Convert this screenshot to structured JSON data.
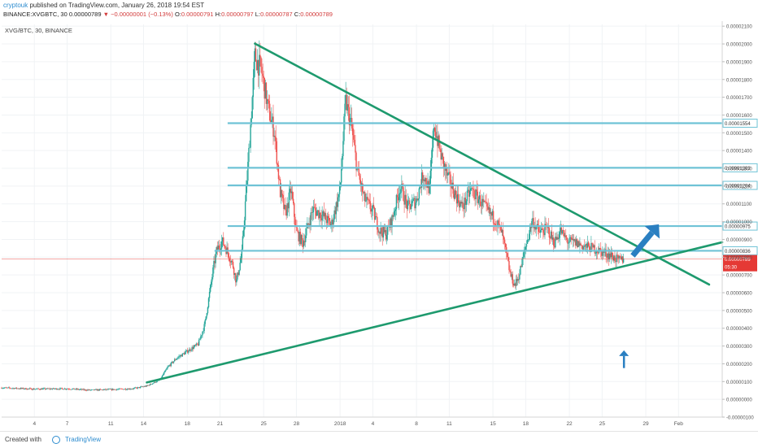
{
  "header": {
    "author": "cryptouk",
    "published": "published on TradingView.com, January 26, 2018 19:54 EST"
  },
  "ohlc": {
    "symbol": "BINANCE:XVGBTC, 30",
    "last": "0.00000789",
    "change": "▼ −0.00000001 (−0.13%)",
    "open_label": "O:",
    "open": "0.00000791",
    "high_label": "H:",
    "high": "0.00000797",
    "low_label": "L:",
    "low": "0.00000787",
    "close_label": "C:",
    "close": "0.00000789"
  },
  "symbol_label": "XVG/BTC, 30, BINANCE",
  "footer": {
    "created": "Created with",
    "brand": "TradingView"
  },
  "colors": {
    "up": "#26a69a",
    "down": "#ef5350",
    "trend": "#1e9a6e",
    "level": "#6fc3d6",
    "arrow": "#2a7fc1",
    "price": "#e53935"
  },
  "icons": [
    "up-arrow-icon",
    "tradingview-logo-icon"
  ],
  "chart_data": {
    "type": "candlestick",
    "y_ticks": [
      "0.00002100",
      "0.00002000",
      "0.00001900",
      "0.00001800",
      "0.00001700",
      "0.00001600",
      "0.00001500",
      "0.00001400",
      "0.00001300",
      "0.00001200",
      "0.00001100",
      "0.00001000",
      "0.00000900",
      "0.00000800",
      "0.00000700",
      "0.00000600",
      "0.00000500",
      "0.00000400",
      "0.00000300",
      "0.00000200",
      "0.00000100",
      "0.00000000",
      "-0.00000100"
    ],
    "ylim": [
      -1e-06,
      2.11e-05
    ],
    "x_ticks": [
      "4",
      "7",
      "11",
      "14",
      "18",
      "21",
      "25",
      "28",
      "2018",
      "4",
      "8",
      "11",
      "15",
      "18",
      "22",
      "25",
      "29",
      "Feb"
    ],
    "x_tick_days": [
      4,
      7,
      11,
      14,
      18,
      21,
      25,
      28,
      32,
      35,
      39,
      42,
      46,
      49,
      53,
      56,
      60,
      63
    ],
    "xlim": [
      1,
      67
    ],
    "levels": [
      {
        "value": 1.554e-05,
        "label": "0.00001554",
        "from_day": 21.7
      },
      {
        "value": 1.303e-05,
        "label": "0.00001303",
        "from_day": 21.7
      },
      {
        "value": 1.204e-05,
        "label": "0.00001204",
        "from_day": 21.7
      },
      {
        "value": 9.75e-06,
        "label": "0.00000975",
        "from_day": 21.7
      },
      {
        "value": 8.36e-06,
        "label": "0.00000836",
        "from_day": 20.5
      }
    ],
    "current_price": {
      "value": 7.89e-06,
      "label": "0.00000789",
      "countdown": "05:30"
    },
    "trendlines": [
      {
        "x1": 24.2,
        "y1": 2.002e-05,
        "x2": 65.8,
        "y2": 6.46e-06
      },
      {
        "x1": 14.3,
        "y1": 9.5e-07,
        "x2": 67,
        "y2": 8.84e-06
      }
    ],
    "arrows": [
      {
        "x1": 58.8,
        "y1": 8.08e-06,
        "x2": 61.2,
        "y2": 9.85e-06,
        "style": "thick"
      },
      {
        "x1": 58.0,
        "y1": 1.76e-06,
        "x2": 58.0,
        "y2": 2.76e-06,
        "style": "thin"
      }
    ],
    "price_path": [
      [
        1,
        6.5e-07
      ],
      [
        4,
        5.8e-07
      ],
      [
        7,
        6e-07
      ],
      [
        9,
        5.2e-07
      ],
      [
        11,
        5.5e-07
      ],
      [
        13,
        6e-07
      ],
      [
        14.3,
        7.5e-07
      ],
      [
        15.5,
        1.1e-06
      ],
      [
        16.2,
        1.8e-06
      ],
      [
        17,
        2.3e-06
      ],
      [
        18,
        2.7e-06
      ],
      [
        19,
        3.1e-06
      ],
      [
        19.6,
        4.2e-06
      ],
      [
        20,
        5.8e-06
      ],
      [
        20.4,
        7.4e-06
      ],
      [
        20.7,
        8.4e-06
      ],
      [
        21.2,
        8.9e-06
      ],
      [
        21.7,
        8.3e-06
      ],
      [
        22.2,
        7.5e-06
      ],
      [
        22.5,
        6.6e-06
      ],
      [
        23,
        8.2e-06
      ],
      [
        23.6,
        1.35e-05
      ],
      [
        24.2,
        1.93e-05
      ],
      [
        24.8,
        1.85e-05
      ],
      [
        25.4,
        1.64e-05
      ],
      [
        26,
        1.5e-05
      ],
      [
        26.5,
        1.17e-05
      ],
      [
        27,
        1.04e-05
      ],
      [
        27.5,
        1.18e-05
      ],
      [
        28,
        9.4e-06
      ],
      [
        28.6,
        8.8e-06
      ],
      [
        29.5,
        1.07e-05
      ],
      [
        30.5,
        1.03e-05
      ],
      [
        31.2,
        9.8e-06
      ],
      [
        32,
        1.18e-05
      ],
      [
        32.5,
        1.68e-05
      ],
      [
        33,
        1.55e-05
      ],
      [
        33.6,
        1.28e-05
      ],
      [
        34.2,
        1.13e-05
      ],
      [
        35,
        1.06e-05
      ],
      [
        35.6,
        9.5e-06
      ],
      [
        36.2,
        9.3e-06
      ],
      [
        36.8,
        1.02e-05
      ],
      [
        37.5,
        1.2e-05
      ],
      [
        38.2,
        1.08e-05
      ],
      [
        39,
        1.12e-05
      ],
      [
        39.6,
        1.27e-05
      ],
      [
        40.2,
        1.18e-05
      ],
      [
        40.6,
        1.55e-05
      ],
      [
        41.2,
        1.38e-05
      ],
      [
        41.8,
        1.26e-05
      ],
      [
        42.5,
        1.16e-05
      ],
      [
        43.2,
        1.08e-05
      ],
      [
        44,
        1.18e-05
      ],
      [
        44.8,
        1.12e-05
      ],
      [
        45.5,
        1.06e-05
      ],
      [
        46.2,
        1.01e-05
      ],
      [
        46.8,
        9.4e-06
      ],
      [
        47.2,
        8.2e-06
      ],
      [
        47.6,
        7e-06
      ],
      [
        48,
        6.4e-06
      ],
      [
        48.4,
        7e-06
      ],
      [
        49,
        8.6e-06
      ],
      [
        49.6,
        1.01e-05
      ],
      [
        50.2,
        9.4e-06
      ],
      [
        51,
        9.6e-06
      ],
      [
        51.6,
        8.8e-06
      ],
      [
        52.2,
        9.5e-06
      ],
      [
        52.8,
        8.9e-06
      ],
      [
        53.6,
        8.8e-06
      ],
      [
        54.4,
        8.6e-06
      ],
      [
        55.2,
        8.5e-06
      ],
      [
        56,
        8.3e-06
      ],
      [
        56.8,
        8.1e-06
      ],
      [
        57.5,
        7.8e-06
      ],
      [
        58,
        7.9e-06
      ]
    ]
  }
}
